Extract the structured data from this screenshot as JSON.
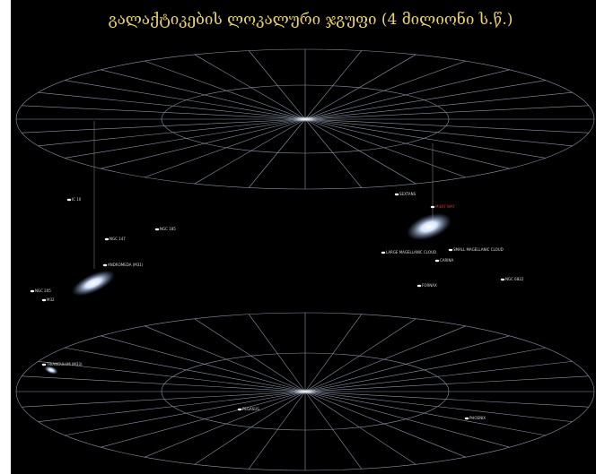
{
  "title": "გალაქტიკების ლოკალური ჯგუფი (4 მილიონი ს.წ.)",
  "labels": [
    "IC 10",
    "NGC 185",
    "NGC 147",
    "ANDROMEDA (M31)",
    "NGC 205",
    "M32",
    "TRIANGULUM (M33)",
    "SEXTANS",
    "MILKY WAY",
    "SMALL MAGELLANIC CLOUD",
    "LARGE MAGELLANIC CLOUD",
    "CARINA",
    "FORNAX",
    "NGC 6822",
    "PEGASUS",
    "PHOENIX"
  ]
}
